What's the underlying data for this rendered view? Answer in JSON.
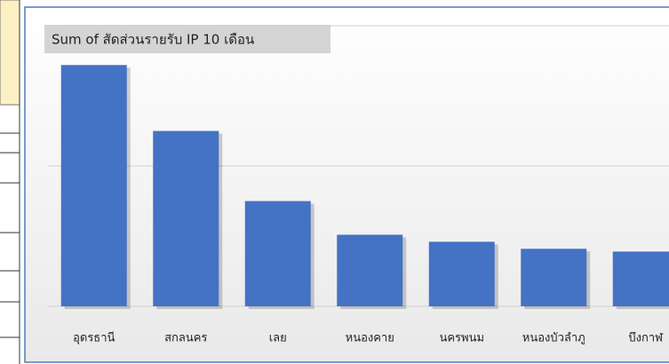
{
  "chart_data": {
    "type": "bar",
    "title": "Sum of สัดส่วนรายรับ IP 10 เดือน",
    "categories": [
      "อุดรธานี",
      "สกลนคร",
      "เลย",
      "หนองคาย",
      "นครพนม",
      "หนองบัวลำภู",
      "บึงกาฬ"
    ],
    "values": [
      1.72,
      1.25,
      0.75,
      0.51,
      0.46,
      0.41,
      0.39
    ],
    "color": "#4472c4",
    "ylim": [
      0,
      2
    ],
    "yticks": [
      0,
      1,
      2
    ],
    "grid": true
  }
}
